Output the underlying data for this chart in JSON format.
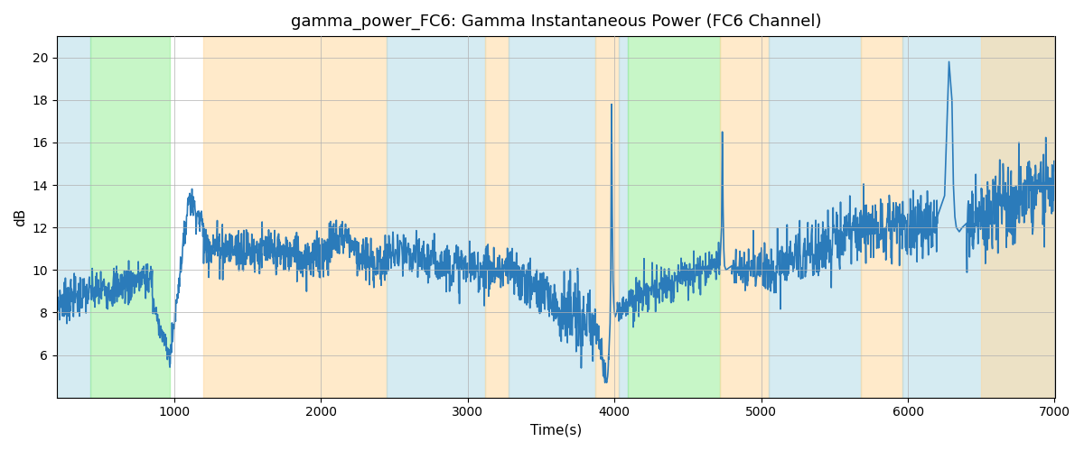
{
  "title": "gamma_power_FC6: Gamma Instantaneous Power (FC6 Channel)",
  "xlabel": "Time(s)",
  "ylabel": "dB",
  "xlim": [
    200,
    7000
  ],
  "ylim": [
    4,
    21
  ],
  "yticks": [
    6,
    8,
    10,
    12,
    14,
    16,
    18,
    20
  ],
  "xticks": [
    1000,
    2000,
    3000,
    4000,
    5000,
    6000,
    7000
  ],
  "line_color": "#2b7bba",
  "line_width": 1.2,
  "background_color": "#ffffff",
  "grid_color": "#b0b0b0",
  "colored_bands": [
    {
      "xmin": 200,
      "xmax": 430,
      "color": "#add8e6",
      "alpha": 0.5
    },
    {
      "xmin": 430,
      "xmax": 970,
      "color": "#90ee90",
      "alpha": 0.5
    },
    {
      "xmin": 1200,
      "xmax": 2450,
      "color": "#ffd9a0",
      "alpha": 0.55
    },
    {
      "xmin": 2450,
      "xmax": 3120,
      "color": "#add8e6",
      "alpha": 0.5
    },
    {
      "xmin": 3120,
      "xmax": 3280,
      "color": "#ffd9a0",
      "alpha": 0.55
    },
    {
      "xmin": 3280,
      "xmax": 3870,
      "color": "#add8e6",
      "alpha": 0.5
    },
    {
      "xmin": 3870,
      "xmax": 4030,
      "color": "#ffd9a0",
      "alpha": 0.55
    },
    {
      "xmin": 4030,
      "xmax": 4090,
      "color": "#add8e6",
      "alpha": 0.5
    },
    {
      "xmin": 4090,
      "xmax": 4720,
      "color": "#90ee90",
      "alpha": 0.5
    },
    {
      "xmin": 4720,
      "xmax": 5050,
      "color": "#ffd9a0",
      "alpha": 0.55
    },
    {
      "xmin": 5050,
      "xmax": 5680,
      "color": "#add8e6",
      "alpha": 0.5
    },
    {
      "xmin": 5680,
      "xmax": 5960,
      "color": "#ffd9a0",
      "alpha": 0.55
    },
    {
      "xmin": 5960,
      "xmax": 7000,
      "color": "#add8e6",
      "alpha": 0.5
    },
    {
      "xmin": 6500,
      "xmax": 7000,
      "color": "#ffd9a0",
      "alpha": 0.55
    }
  ],
  "figsize": [
    12,
    5
  ],
  "dpi": 100
}
